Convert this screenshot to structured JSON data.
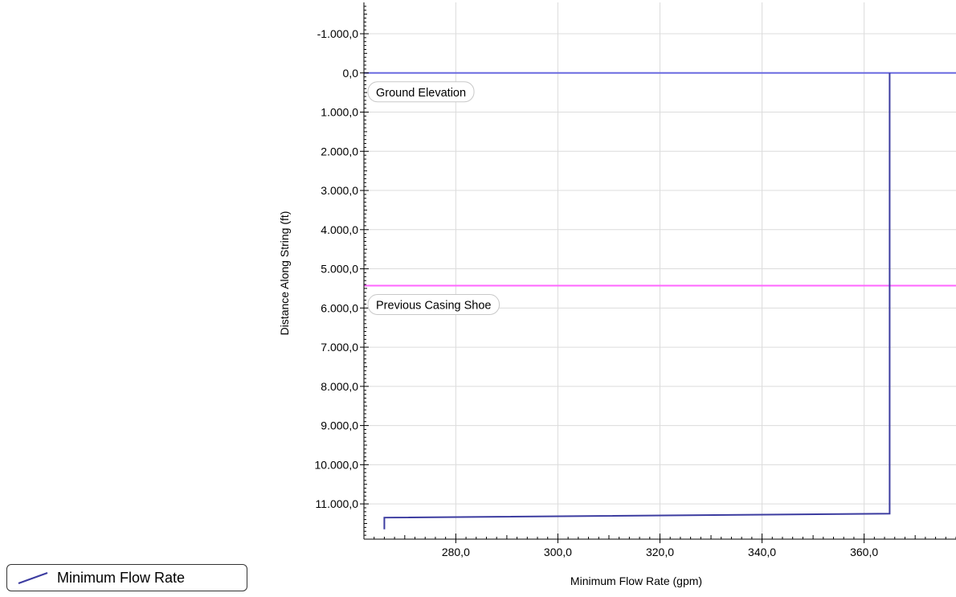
{
  "chart_data": {
    "type": "line",
    "xlabel": "Minimum Flow Rate (gpm)",
    "ylabel": "Distance Along String (ft)",
    "xlim": [
      262,
      378
    ],
    "ylim": [
      -1800,
      11900
    ],
    "y_inverted": true,
    "grid": true,
    "x_ticks": [
      280,
      300,
      320,
      340,
      360
    ],
    "x_tick_labels": [
      "280,0",
      "300,0",
      "320,0",
      "340,0",
      "360,0"
    ],
    "y_ticks": [
      -1000,
      0,
      1000,
      2000,
      3000,
      4000,
      5000,
      6000,
      7000,
      8000,
      9000,
      10000,
      11000
    ],
    "y_tick_labels": [
      "-1.000,0",
      "0,0",
      "1.000,0",
      "2.000,0",
      "3.000,0",
      "4.000,0",
      "5.000,0",
      "6.000,0",
      "7.000,0",
      "8.000,0",
      "9.000,0",
      "10.000,0",
      "11.000,0"
    ],
    "series": [
      {
        "name": "Minimum Flow Rate",
        "color": "#3c3ca0",
        "points": [
          [
            365,
            0
          ],
          [
            365,
            11250
          ],
          [
            266,
            11350
          ],
          [
            266,
            11650
          ]
        ]
      }
    ],
    "reference_lines": [
      {
        "label": "Ground Elevation",
        "y": 0,
        "color": "#6a6ae0"
      },
      {
        "label": "Previous Casing Shoe",
        "y": 5430,
        "color": "#ff66ff"
      }
    ],
    "legend": {
      "position": "bottom-left",
      "entries": [
        "Minimum Flow Rate"
      ]
    }
  }
}
